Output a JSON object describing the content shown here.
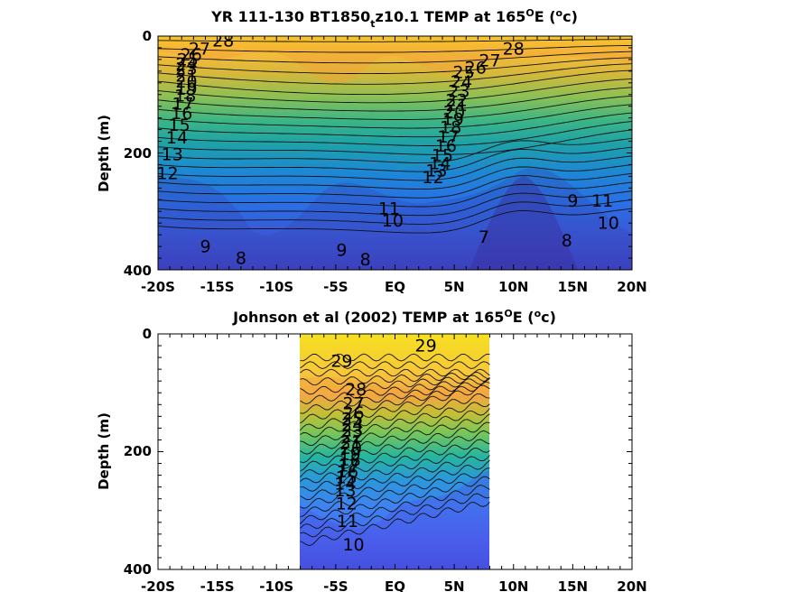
{
  "chart_data": [
    {
      "type": "heatmap",
      "title": "YR 111-130 BT1850_tz10.1 TEMP at 165°E (°c)",
      "title_parts": {
        "main": "YR 111-130 BT1850",
        "subscript": "t",
        "after": "z10.1 TEMP at 165",
        "sup1": "O",
        "mid": "E (",
        "sup2": "o",
        "end": "c)"
      },
      "ylabel": "Depth (m)",
      "xlim": [
        -20,
        20
      ],
      "ylim": [
        0,
        400
      ],
      "y_reversed": true,
      "x_tick_labels": [
        "-20S",
        "-15S",
        "-10S",
        "-5S",
        "EQ",
        "5N",
        "10N",
        "15N",
        "20N"
      ],
      "y_tick_labels": [
        "0",
        "200",
        "400"
      ],
      "data_extent_x": [
        -20,
        20
      ],
      "contour_labels": [
        {
          "text": "28",
          "x": -14.5,
          "y": 18
        },
        {
          "text": "27",
          "x": -16.5,
          "y": 32
        },
        {
          "text": "26",
          "x": -17.2,
          "y": 42
        },
        {
          "text": "25",
          "x": -17.5,
          "y": 50
        },
        {
          "text": "24",
          "x": -17.6,
          "y": 58
        },
        {
          "text": "23",
          "x": -17.6,
          "y": 66
        },
        {
          "text": "21",
          "x": -17.6,
          "y": 78
        },
        {
          "text": "20",
          "x": -17.6,
          "y": 88
        },
        {
          "text": "19",
          "x": -17.6,
          "y": 100
        },
        {
          "text": "18",
          "x": -17.7,
          "y": 112
        },
        {
          "text": "17",
          "x": -17.9,
          "y": 126
        },
        {
          "text": "16",
          "x": -18.0,
          "y": 142
        },
        {
          "text": "15",
          "x": -18.2,
          "y": 162
        },
        {
          "text": "14",
          "x": -18.4,
          "y": 184
        },
        {
          "text": "13",
          "x": -18.8,
          "y": 212
        },
        {
          "text": "12",
          "x": -19.2,
          "y": 245
        },
        {
          "text": "28",
          "x": 10.0,
          "y": 32
        },
        {
          "text": "27",
          "x": 8.0,
          "y": 52
        },
        {
          "text": "26",
          "x": 6.8,
          "y": 64
        },
        {
          "text": "25",
          "x": 5.8,
          "y": 72
        },
        {
          "text": "24",
          "x": 5.6,
          "y": 88
        },
        {
          "text": "23",
          "x": 5.4,
          "y": 104
        },
        {
          "text": "22",
          "x": 5.2,
          "y": 120
        },
        {
          "text": "21",
          "x": 5.2,
          "y": 128
        },
        {
          "text": "20",
          "x": 5.0,
          "y": 140
        },
        {
          "text": "19",
          "x": 4.9,
          "y": 152
        },
        {
          "text": "18",
          "x": 4.7,
          "y": 166
        },
        {
          "text": "17",
          "x": 4.5,
          "y": 182
        },
        {
          "text": "16",
          "x": 4.3,
          "y": 198
        },
        {
          "text": "15",
          "x": 4.0,
          "y": 214
        },
        {
          "text": "14",
          "x": 3.8,
          "y": 228
        },
        {
          "text": "13",
          "x": 3.5,
          "y": 240
        },
        {
          "text": "12",
          "x": 3.2,
          "y": 252
        },
        {
          "text": "11",
          "x": -0.5,
          "y": 305
        },
        {
          "text": "10",
          "x": -0.2,
          "y": 326
        },
        {
          "text": "9",
          "x": -16.0,
          "y": 370
        },
        {
          "text": "8",
          "x": -13.0,
          "y": 390
        },
        {
          "text": "9",
          "x": -4.5,
          "y": 376
        },
        {
          "text": "8",
          "x": -2.5,
          "y": 392
        },
        {
          "text": "7",
          "x": 7.5,
          "y": 354
        },
        {
          "text": "8",
          "x": 14.5,
          "y": 360
        },
        {
          "text": "9",
          "x": 15.0,
          "y": 292
        },
        {
          "text": "11",
          "x": 17.5,
          "y": 292
        },
        {
          "text": "10",
          "x": 18.0,
          "y": 330
        }
      ]
    },
    {
      "type": "heatmap",
      "title": "Johnson et al (2002) TEMP at 165°E (°c)",
      "title_parts": {
        "main": "Johnson et al (2002) TEMP at 165",
        "sup1": "O",
        "mid": "E (",
        "sup2": "o",
        "end": "c)"
      },
      "ylabel": "Depth (m)",
      "xlim": [
        -20,
        20
      ],
      "ylim": [
        0,
        400
      ],
      "y_reversed": true,
      "x_tick_labels": [
        "-20S",
        "-15S",
        "-10S",
        "-5S",
        "EQ",
        "5N",
        "10N",
        "15N",
        "20N"
      ],
      "y_tick_labels": [
        "0",
        "200",
        "400"
      ],
      "data_extent_x": [
        -8,
        8
      ],
      "contour_labels": [
        {
          "text": "29",
          "x": -4.5,
          "y": 56
        },
        {
          "text": "29",
          "x": 2.6,
          "y": 30
        },
        {
          "text": "28",
          "x": -3.3,
          "y": 104
        },
        {
          "text": "27",
          "x": -3.5,
          "y": 128
        },
        {
          "text": "26",
          "x": -3.5,
          "y": 144
        },
        {
          "text": "25",
          "x": -3.6,
          "y": 154
        },
        {
          "text": "24",
          "x": -3.6,
          "y": 164
        },
        {
          "text": "23",
          "x": -3.6,
          "y": 174
        },
        {
          "text": "22",
          "x": -3.6,
          "y": 184
        },
        {
          "text": "21",
          "x": -3.7,
          "y": 194
        },
        {
          "text": "20",
          "x": -3.7,
          "y": 204
        },
        {
          "text": "19",
          "x": -3.8,
          "y": 214
        },
        {
          "text": "18",
          "x": -3.8,
          "y": 224
        },
        {
          "text": "17",
          "x": -3.9,
          "y": 234
        },
        {
          "text": "16",
          "x": -4.0,
          "y": 244
        },
        {
          "text": "15",
          "x": -4.1,
          "y": 254
        },
        {
          "text": "14",
          "x": -4.2,
          "y": 264
        },
        {
          "text": "13",
          "x": -4.2,
          "y": 276
        },
        {
          "text": "12",
          "x": -4.1,
          "y": 298
        },
        {
          "text": "11",
          "x": -4.0,
          "y": 328
        },
        {
          "text": "10",
          "x": -3.5,
          "y": 368
        }
      ]
    }
  ]
}
